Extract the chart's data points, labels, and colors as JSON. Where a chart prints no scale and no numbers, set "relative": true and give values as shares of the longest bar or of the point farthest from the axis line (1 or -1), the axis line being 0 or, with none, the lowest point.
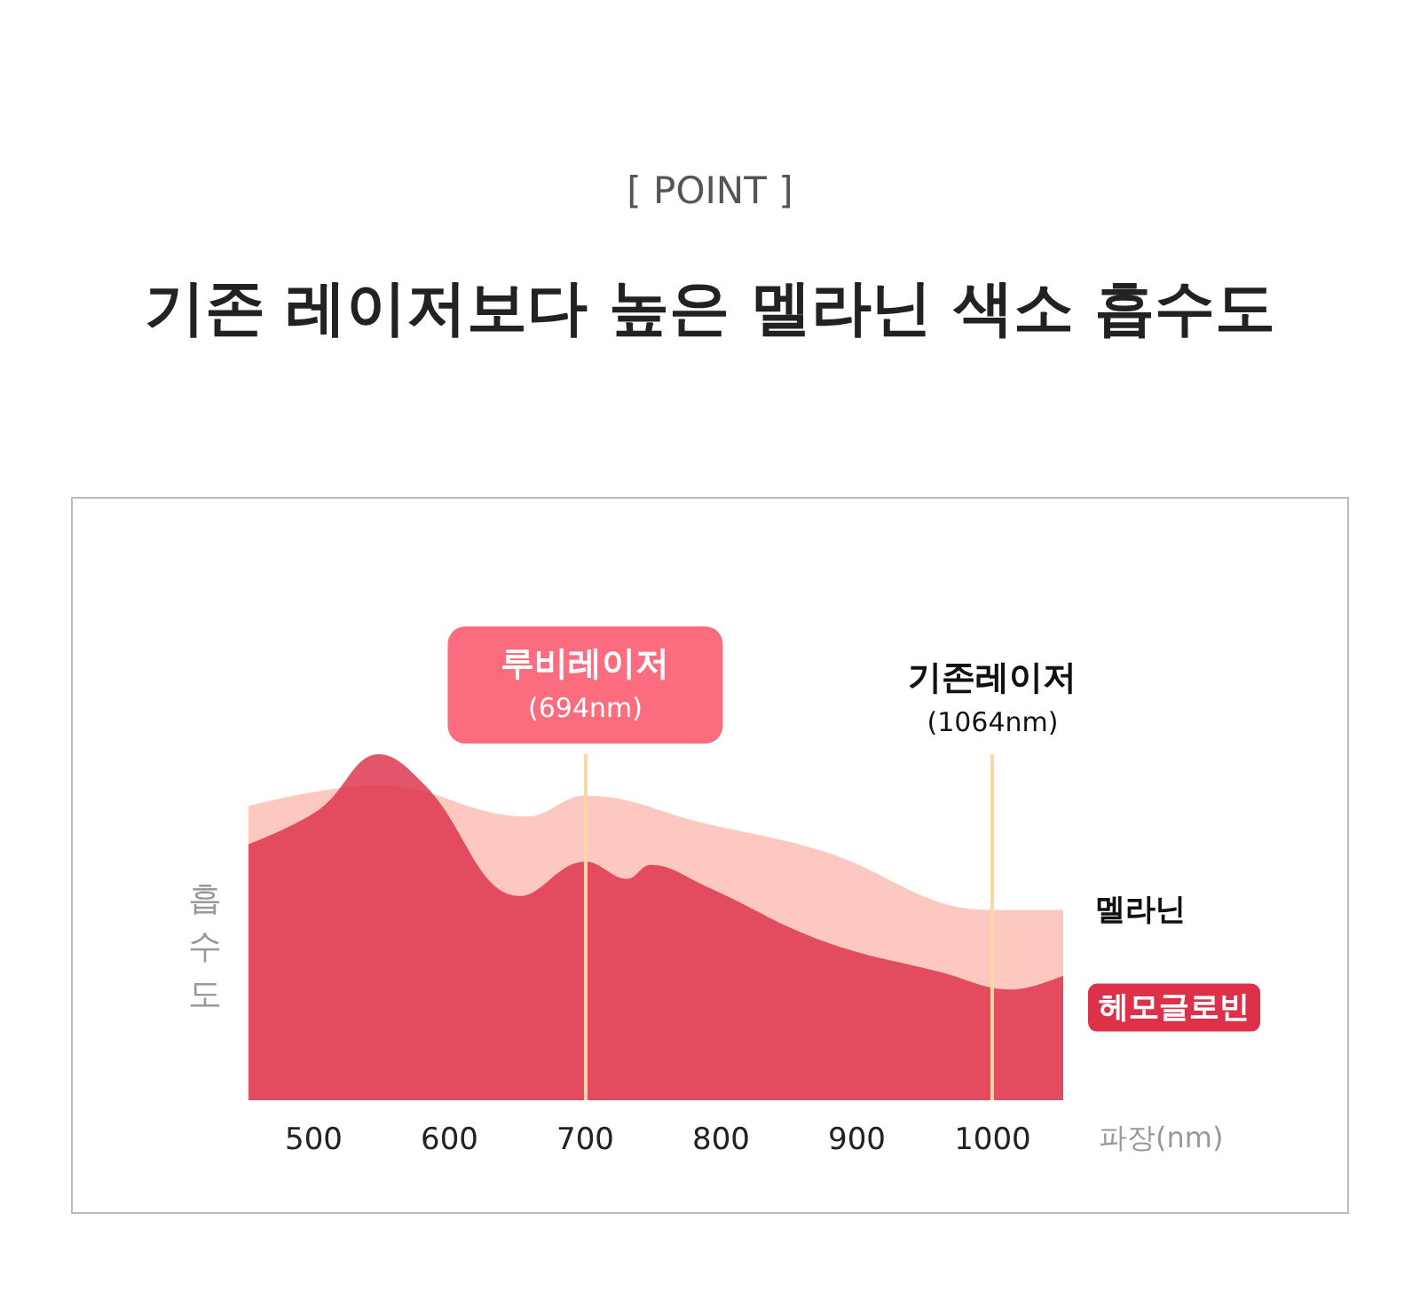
{
  "chart_data": {
    "type": "area",
    "title": "기존 레이저보다 높은 멜라닌 색소 흡수도",
    "subtitle": "[ POINT ]",
    "xlabel": "파장(nm)",
    "ylabel": "흡수도",
    "relative": true,
    "tick_labels": "x",
    "marker": "none",
    "xlim": [
      452,
      1052
    ],
    "xticks": [
      500,
      600,
      700,
      800,
      900,
      1000
    ],
    "series": [
      {
        "name": "멜라닌",
        "color": "#fcbcb2",
        "x": [
          452,
          548,
          657,
          700,
          788,
          875,
          997,
          1052
        ],
        "values": [
          0.85,
          0.91,
          0.82,
          0.88,
          0.8,
          0.72,
          0.55,
          0.55
        ]
      },
      {
        "name": "헤모글로빈",
        "color": "#dd3049",
        "x": [
          452,
          504,
          548,
          582,
          652,
          700,
          731,
          748,
          788,
          875,
          962,
          1014,
          1052
        ],
        "values": [
          0.74,
          0.84,
          1,
          0.91,
          0.59,
          0.69,
          0.64,
          0.68,
          0.62,
          0.46,
          0.37,
          0.32,
          0.36
        ]
      }
    ],
    "ref_lines": [
      {
        "axis": "x",
        "value": 700,
        "label": "루비레이저\n(694nm)",
        "color": "#fcd7a6"
      },
      {
        "axis": "x",
        "value": 1000,
        "label": "기존레이저\n(1064nm)",
        "color": "#fcd7a6"
      }
    ]
  }
}
